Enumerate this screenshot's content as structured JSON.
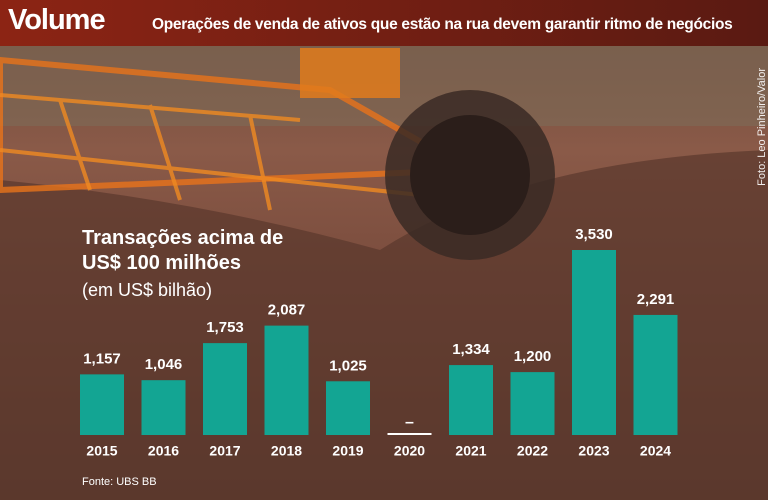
{
  "chart_data": {
    "type": "bar",
    "header": "Volume",
    "header_subtitle": "Operações de venda de ativos que estão na rua devem garantir ritmo de negócios",
    "photo_credit": "Foto: Leo Pinheiro/Valor",
    "title": "Transações acima de US$ 100 milhões",
    "subtitle": "(em US$ bilhão)",
    "source": "Fonte: UBS BB",
    "categories": [
      "2015",
      "2016",
      "2017",
      "2018",
      "2019",
      "2020",
      "2021",
      "2022",
      "2023",
      "2024"
    ],
    "values": [
      1157,
      1046,
      1753,
      2087,
      1025,
      null,
      1334,
      1200,
      3530,
      2291
    ],
    "value_labels": [
      "1,157",
      "1,046",
      "1,753",
      "2,087",
      "1,025",
      "–",
      "1,334",
      "1,200",
      "3,530",
      "2,291"
    ],
    "color": "#13a593"
  }
}
